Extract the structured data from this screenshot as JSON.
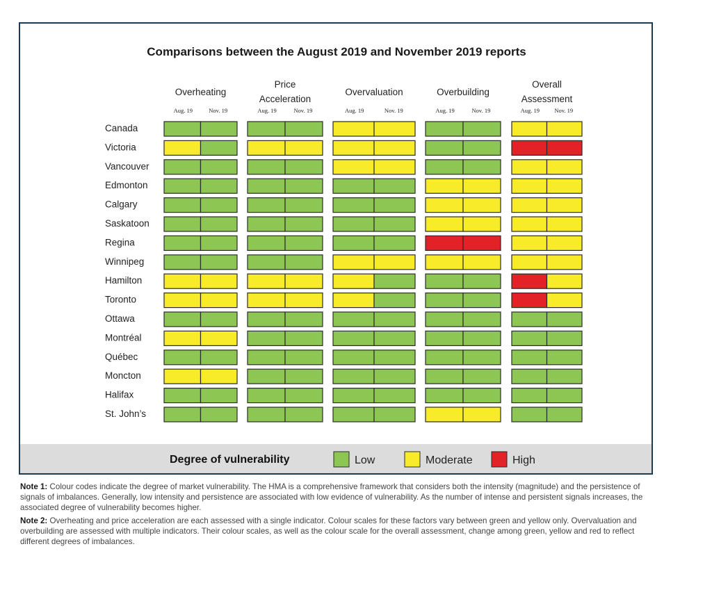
{
  "chart_data": {
    "type": "heatmap",
    "title": "Comparisons between the August 2019 and November 2019 reports",
    "groups": [
      {
        "lines": [
          "Overheating"
        ]
      },
      {
        "lines": [
          "Price",
          "Acceleration"
        ]
      },
      {
        "lines": [
          "Overvaluation"
        ]
      },
      {
        "lines": [
          "Overbuilding"
        ]
      },
      {
        "lines": [
          "Overall",
          "Assessment"
        ]
      }
    ],
    "sub_columns": [
      "Aug. 19",
      "Nov. 19"
    ],
    "cities": [
      "Canada",
      "Victoria",
      "Vancouver",
      "Edmonton",
      "Calgary",
      "Saskatoon",
      "Regina",
      "Winnipeg",
      "Hamilton",
      "Toronto",
      "Ottawa",
      "Montréal",
      "Québec",
      "Moncton",
      "Halifax",
      "St. John’s"
    ],
    "values": [
      [
        "L",
        "L",
        "L",
        "L",
        "M",
        "M",
        "L",
        "L",
        "M",
        "M"
      ],
      [
        "M",
        "L",
        "M",
        "M",
        "M",
        "M",
        "L",
        "L",
        "H",
        "H"
      ],
      [
        "L",
        "L",
        "L",
        "L",
        "M",
        "M",
        "L",
        "L",
        "M",
        "M"
      ],
      [
        "L",
        "L",
        "L",
        "L",
        "L",
        "L",
        "M",
        "M",
        "M",
        "M"
      ],
      [
        "L",
        "L",
        "L",
        "L",
        "L",
        "L",
        "M",
        "M",
        "M",
        "M"
      ],
      [
        "L",
        "L",
        "L",
        "L",
        "L",
        "L",
        "M",
        "M",
        "M",
        "M"
      ],
      [
        "L",
        "L",
        "L",
        "L",
        "L",
        "L",
        "H",
        "H",
        "M",
        "M"
      ],
      [
        "L",
        "L",
        "L",
        "L",
        "M",
        "M",
        "M",
        "M",
        "M",
        "M"
      ],
      [
        "M",
        "M",
        "M",
        "M",
        "M",
        "L",
        "L",
        "L",
        "H",
        "M"
      ],
      [
        "M",
        "M",
        "M",
        "M",
        "M",
        "L",
        "L",
        "L",
        "H",
        "M"
      ],
      [
        "L",
        "L",
        "L",
        "L",
        "L",
        "L",
        "L",
        "L",
        "L",
        "L"
      ],
      [
        "M",
        "M",
        "L",
        "L",
        "L",
        "L",
        "L",
        "L",
        "L",
        "L"
      ],
      [
        "L",
        "L",
        "L",
        "L",
        "L",
        "L",
        "L",
        "L",
        "L",
        "L"
      ],
      [
        "M",
        "M",
        "L",
        "L",
        "L",
        "L",
        "L",
        "L",
        "L",
        "L"
      ],
      [
        "L",
        "L",
        "L",
        "L",
        "L",
        "L",
        "L",
        "L",
        "L",
        "L"
      ],
      [
        "L",
        "L",
        "L",
        "L",
        "L",
        "L",
        "M",
        "M",
        "L",
        "L"
      ]
    ],
    "legend": {
      "title": "Degree of vulnerability",
      "items": [
        {
          "key": "L",
          "label": "Low",
          "color": "#8dc653"
        },
        {
          "key": "M",
          "label": "Moderate",
          "color": "#f8ec2a"
        },
        {
          "key": "H",
          "label": "High",
          "color": "#e32227"
        }
      ]
    }
  },
  "notes": [
    {
      "label": "Note 1:",
      "text": "Colour codes indicate the degree of market vulnerability. The HMA is a comprehensive framework that considers both the intensity (magnitude) and the persistence of signals of imbalances. Generally, low intensity and persistence are associated with low evidence of vulnerability. As the number of intense and persistent signals increases, the associated degree of vulnerability becomes higher."
    },
    {
      "label": "Note 2:",
      "text": "Overheating and price acceleration are each assessed with a single indicator. Colour scales for these factors vary between green and yellow only. Overvaluation and overbuilding are assessed with multiple indicators. Their colour scales, as well as the colour scale for the overall assessment, change among green, yellow and red to reflect different degrees of imbalances."
    }
  ]
}
